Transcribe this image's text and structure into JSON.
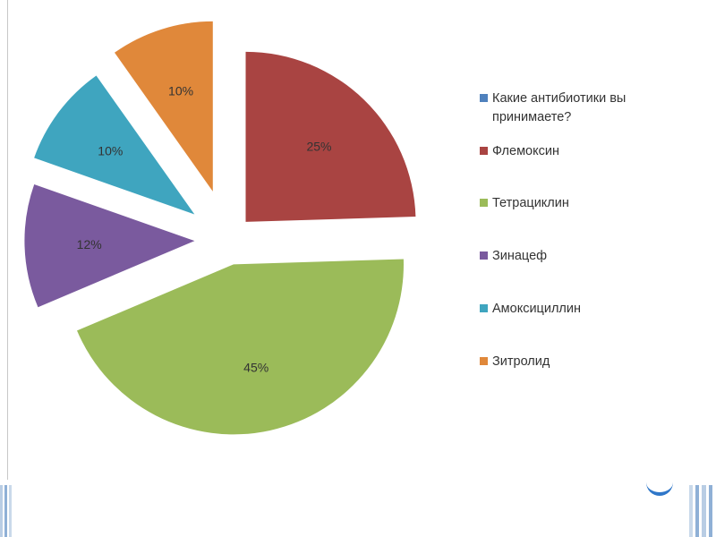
{
  "chart_data": {
    "type": "pie",
    "exploded": true,
    "legend_position": "right",
    "slices": [
      {
        "label": "Какие антибиотики  вы принимаете?",
        "value": 0,
        "display": "",
        "color": "#4f81bd"
      },
      {
        "label": "Флемоксин",
        "value": 25,
        "display": "25%",
        "color": "#a94442"
      },
      {
        "label": "Тетрациклин",
        "value": 45,
        "display": "45%",
        "color": "#9bbb59"
      },
      {
        "label": "Зинацеф",
        "value": 12,
        "display": "12%",
        "color": "#7a5a9e"
      },
      {
        "label": "Амоксициллин",
        "value": 10,
        "display": "10%",
        "color": "#3fa5bf"
      },
      {
        "label": "Зитролид",
        "value": 10,
        "display": "10%",
        "color": "#e0883a"
      }
    ]
  }
}
